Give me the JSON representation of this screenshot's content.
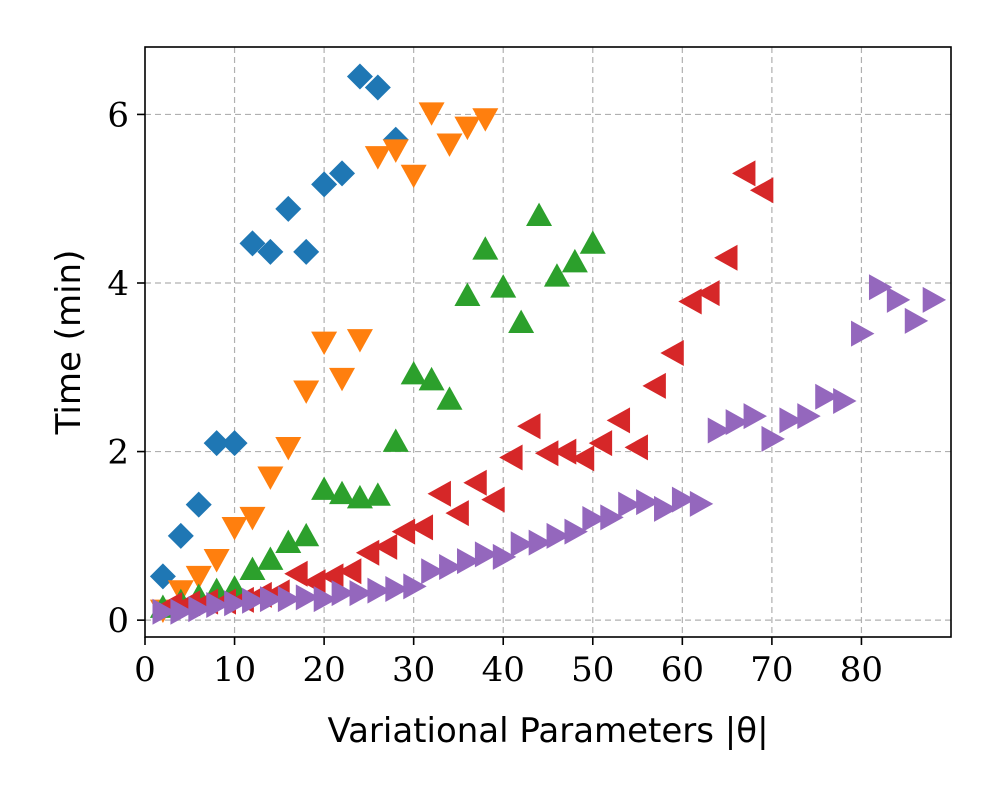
{
  "chart_data": {
    "type": "scatter",
    "title": "",
    "xlabel": "Variational Parameters |θ|",
    "ylabel": "Time (min)",
    "xlim": [
      0,
      90
    ],
    "ylim": [
      -0.2,
      6.8
    ],
    "xticks": [
      0,
      10,
      20,
      30,
      40,
      50,
      60,
      70,
      80
    ],
    "yticks": [
      0,
      2,
      4,
      6
    ],
    "grid": true,
    "legend": "none",
    "series": [
      {
        "marker": "diamond",
        "color": "#1f77b4",
        "x": [
          2,
          4,
          6,
          8,
          10,
          12,
          14,
          16,
          18,
          20,
          22,
          24,
          26,
          28
        ],
        "y": [
          0.52,
          1.0,
          1.37,
          2.1,
          2.1,
          4.47,
          4.37,
          4.88,
          4.37,
          5.17,
          5.3,
          6.45,
          6.32,
          5.7
        ]
      },
      {
        "marker": "triangle-down",
        "color": "#ff7f0e",
        "x": [
          2,
          4,
          6,
          8,
          10,
          12,
          14,
          16,
          18,
          20,
          22,
          24,
          26,
          28,
          30,
          32,
          34,
          36,
          38
        ],
        "y": [
          0.12,
          0.35,
          0.52,
          0.72,
          1.1,
          1.22,
          1.7,
          2.05,
          2.72,
          3.3,
          2.87,
          3.33,
          5.5,
          5.58,
          5.28,
          6.02,
          5.65,
          5.85,
          5.95
        ]
      },
      {
        "marker": "triangle-up",
        "color": "#2ca02c",
        "x": [
          2,
          4,
          6,
          8,
          10,
          12,
          14,
          16,
          18,
          20,
          22,
          24,
          26,
          28,
          30,
          32,
          34,
          36,
          38,
          40,
          42,
          44,
          46,
          48,
          50
        ],
        "y": [
          0.15,
          0.22,
          0.28,
          0.35,
          0.38,
          0.6,
          0.72,
          0.92,
          1.0,
          1.55,
          1.5,
          1.45,
          1.48,
          2.12,
          2.92,
          2.85,
          2.62,
          3.85,
          4.4,
          3.95,
          3.53,
          4.8,
          4.08,
          4.25,
          4.47
        ]
      },
      {
        "marker": "triangle-left",
        "color": "#d62728",
        "x": [
          3,
          5,
          7,
          9,
          11,
          13,
          15,
          17,
          19,
          21,
          23,
          25,
          27,
          29,
          31,
          33,
          35,
          37,
          39,
          41,
          43,
          45,
          47,
          49,
          51,
          53,
          55,
          57,
          59,
          61,
          63,
          65,
          67,
          69
        ],
        "y": [
          0.18,
          0.2,
          0.22,
          0.22,
          0.24,
          0.3,
          0.33,
          0.55,
          0.45,
          0.52,
          0.58,
          0.8,
          0.87,
          1.05,
          1.1,
          1.5,
          1.27,
          1.63,
          1.43,
          1.93,
          2.3,
          1.98,
          2.0,
          1.92,
          2.1,
          2.37,
          2.05,
          2.78,
          3.17,
          3.78,
          3.88,
          4.3,
          5.3,
          5.1
        ]
      },
      {
        "marker": "triangle-right",
        "color": "#9467bd",
        "x": [
          2,
          4,
          6,
          8,
          10,
          12,
          14,
          16,
          18,
          20,
          22,
          24,
          26,
          28,
          30,
          32,
          34,
          36,
          38,
          40,
          42,
          44,
          46,
          48,
          50,
          52,
          54,
          56,
          58,
          60,
          62,
          64,
          66,
          68,
          70,
          72,
          74,
          76,
          78,
          80,
          82,
          84,
          86,
          88
        ],
        "y": [
          0.1,
          0.1,
          0.13,
          0.18,
          0.2,
          0.23,
          0.25,
          0.25,
          0.27,
          0.25,
          0.32,
          0.32,
          0.35,
          0.37,
          0.4,
          0.58,
          0.63,
          0.7,
          0.78,
          0.75,
          0.9,
          0.92,
          1.0,
          1.05,
          1.2,
          1.22,
          1.37,
          1.4,
          1.32,
          1.43,
          1.38,
          2.25,
          2.35,
          2.42,
          2.15,
          2.37,
          2.42,
          2.65,
          2.6,
          3.4,
          3.95,
          3.8,
          3.55,
          3.8
        ]
      }
    ]
  }
}
